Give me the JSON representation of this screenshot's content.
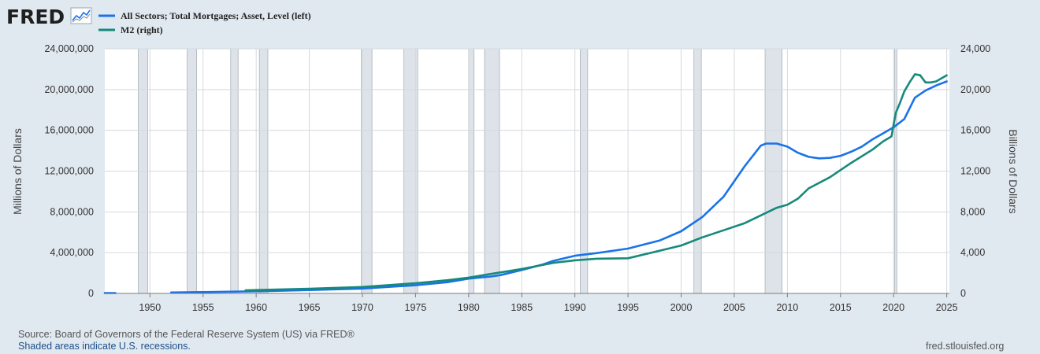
{
  "logo": {
    "text": "FRED",
    "icon": "trend-line-icon"
  },
  "colors": {
    "series1": "#1a73e8",
    "series2": "#158a7b",
    "recession": "#dde3e9",
    "recession_border": "#a9b2ba",
    "background": "#e1e9f0",
    "plot": "#ffffff"
  },
  "footer": {
    "source": "Source: Board of Governors of the Federal Reserve System (US) via FRED®",
    "note": "Shaded areas indicate U.S. recessions.",
    "site": "fred.stlouisfed.org"
  },
  "chart_data": {
    "type": "line",
    "xlabel": "",
    "ylabel_left": "Millions of Dollars",
    "ylabel_right": "Billions of Dollars",
    "xlim": [
      1945.75,
      2025.25
    ],
    "ylim_left": [
      0,
      24000000
    ],
    "ylim_right": [
      0,
      24000
    ],
    "x_ticks": [
      "1950",
      "1955",
      "1960",
      "1965",
      "1970",
      "1975",
      "1980",
      "1985",
      "1990",
      "1995",
      "2000",
      "2005",
      "2010",
      "2015",
      "2020",
      "2025"
    ],
    "y_ticks_left": [
      "0",
      "4,000,000",
      "8,000,000",
      "12,000,000",
      "16,000,000",
      "20,000,000",
      "24,000,000"
    ],
    "y_ticks_right": [
      "0",
      "4,000",
      "8,000",
      "12,000",
      "16,000",
      "20,000",
      "24,000"
    ],
    "grid": true,
    "legend": "top-left",
    "recessions": [
      [
        1948.9,
        1949.8
      ],
      [
        1953.5,
        1954.4
      ],
      [
        1957.6,
        1958.3
      ],
      [
        1960.3,
        1961.1
      ],
      [
        1969.9,
        1970.9
      ],
      [
        1973.9,
        1975.2
      ],
      [
        1980.0,
        1980.5
      ],
      [
        1981.5,
        1982.9
      ],
      [
        1990.5,
        1991.2
      ],
      [
        2001.2,
        2001.9
      ],
      [
        2007.9,
        2009.5
      ],
      [
        2020.1,
        2020.3
      ]
    ],
    "series": [
      {
        "name": "All Sectors; Total Mortgages; Asset, Level (left)",
        "axis": "left",
        "segments": [
          {
            "x": [
              1945.75,
              1946.75
            ],
            "y": [
              36000,
              36000
            ]
          },
          {
            "x": [
              1952,
              1955,
              1960,
              1965,
              1970,
              1975,
              1978,
              1980,
              1982,
              1983,
              1985,
              1987,
              1988,
              1990,
              1992,
              1995,
              1998,
              2000,
              2002,
              2004,
              2006,
              2007.5,
              2008,
              2009,
              2010,
              2011,
              2012,
              2013,
              2014,
              2015,
              2016,
              2017,
              2018,
              2019,
              2020,
              2021,
              2022,
              2023,
              2024,
              2025
            ],
            "y": [
              91000,
              130000,
              208000,
              333000,
              475000,
              800000,
              1100000,
              1450000,
              1650000,
              1800000,
              2300000,
              2850000,
              3200000,
              3700000,
              3950000,
              4400000,
              5200000,
              6100000,
              7500000,
              9500000,
              12500000,
              14500000,
              14700000,
              14700000,
              14400000,
              13800000,
              13400000,
              13250000,
              13300000,
              13500000,
              13900000,
              14400000,
              15100000,
              15700000,
              16300000,
              17100000,
              19200000,
              19900000,
              20400000,
              20800000
            ]
          }
        ]
      },
      {
        "name": "M2 (right)",
        "axis": "right",
        "segments": [
          {
            "x": [
              1959,
              1965,
              1970,
              1973,
              1975,
              1978,
              1980,
              1982,
              1985,
              1988,
              1990,
              1992,
              1995,
              1998,
              2000,
              2002,
              2004,
              2006,
              2008,
              2009,
              2010,
              2011,
              2012,
              2014,
              2016,
              2018,
              2019,
              2019.8,
              2020.2,
              2020.6,
              2021,
              2021.5,
              2022,
              2022.5,
              2023,
              2023.5,
              2024,
              2025
            ],
            "y": [
              300,
              460,
              630,
              860,
              1000,
              1300,
              1550,
              1900,
              2400,
              3000,
              3250,
              3400,
              3450,
              4200,
              4700,
              5500,
              6200,
              6900,
              7900,
              8400,
              8700,
              9300,
              10300,
              11400,
              12800,
              14100,
              14900,
              15400,
              17700,
              18700,
              19800,
              20700,
              21500,
              21400,
              20700,
              20700,
              20800,
              21400
            ]
          }
        ]
      }
    ]
  }
}
